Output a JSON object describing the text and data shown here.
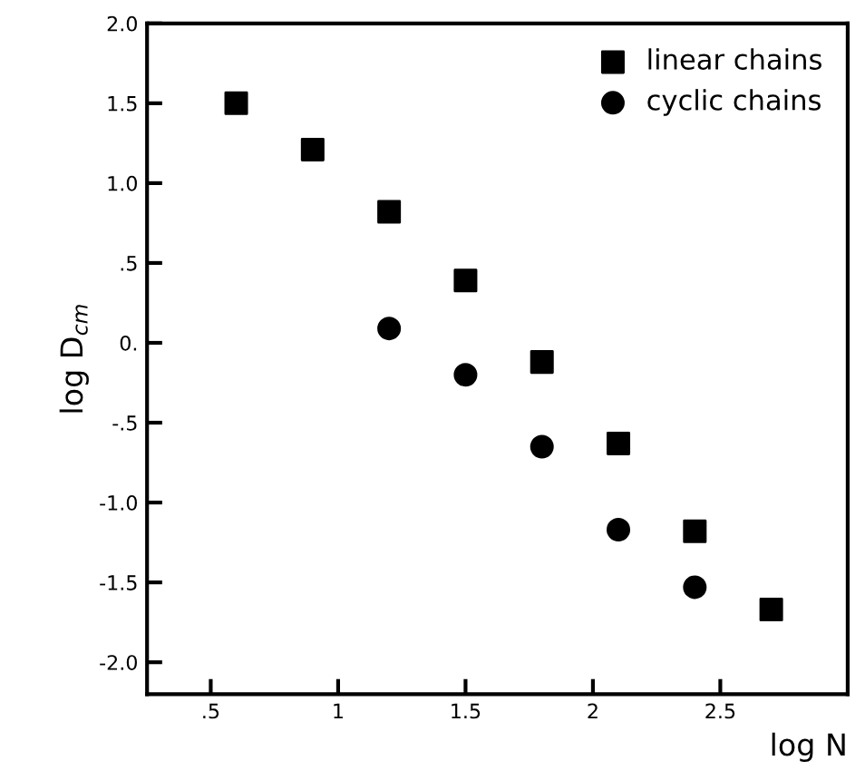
{
  "chart_data": {
    "type": "scatter",
    "xlabel": "log N",
    "ylabel": "log D$_{cm}$",
    "xlim": [
      0.25,
      3.0
    ],
    "ylim": [
      -2.2,
      2.0
    ],
    "xticks": [
      {
        "value": 0.5,
        "label": ".5"
      },
      1,
      1.5,
      2,
      2.5
    ],
    "yticks": [
      {
        "value": 2.0,
        "label": "2.0"
      },
      1.5,
      {
        "value": 1.0,
        "label": "1.0"
      },
      {
        "value": 0.5,
        "label": ".5"
      },
      {
        "value": 0,
        "label": "0."
      },
      {
        "value": -0.5,
        "label": "-.5"
      },
      {
        "value": -1.0,
        "label": "-1.0"
      },
      -1.5,
      {
        "value": -2.0,
        "label": "-2.0"
      }
    ],
    "legend": "top right",
    "grid": false,
    "series": [
      {
        "name": "linear chains",
        "color": "#000000",
        "marker": "square",
        "x": [
          0.6,
          0.9,
          1.2,
          1.5,
          1.8,
          2.1,
          2.4,
          2.7
        ],
        "values": [
          1.5,
          1.21,
          0.82,
          0.39,
          -0.12,
          -0.63,
          -1.18,
          -1.67
        ]
      },
      {
        "name": "cyclic chains",
        "color": "#000000",
        "marker": "circle",
        "x": [
          1.2,
          1.5,
          1.8,
          2.1,
          2.4
        ],
        "values": [
          0.09,
          -0.2,
          -0.65,
          -1.17,
          -1.53
        ]
      }
    ]
  }
}
